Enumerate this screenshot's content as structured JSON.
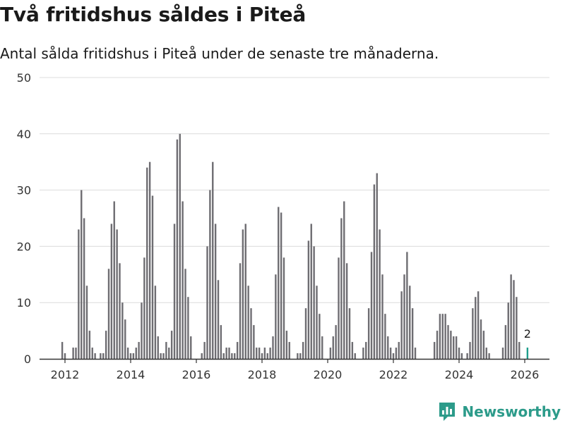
{
  "title": "Två fritidshus såldes i Piteå",
  "subtitle": "Antal sålda fritidshus i Piteå under de senaste tre månaderna.",
  "logo": {
    "text": "Newsworthy",
    "icon": "newsworthy-chart-icon"
  },
  "colors": {
    "bar": "#6e6d72",
    "highlight": "#1f9e8c",
    "grid": "#dcdcdc",
    "axis": "#333333",
    "brand": "#2c9b8a"
  },
  "chart_data": {
    "type": "bar",
    "title": "Två fritidshus såldes i Piteå",
    "xlabel": "",
    "ylabel": "",
    "ylim": [
      0,
      50
    ],
    "yticks": [
      0,
      10,
      20,
      30,
      40,
      50
    ],
    "xticks": [
      {
        "label": "2012",
        "x": 2012
      },
      {
        "label": "2014",
        "x": 2014
      },
      {
        "label": "2016",
        "x": 2016
      },
      {
        "label": "2018",
        "x": 2018
      },
      {
        "label": "2020",
        "x": 2020
      },
      {
        "label": "2022",
        "x": 2022
      },
      {
        "label": "2024",
        "x": 2024
      },
      {
        "label": "2026",
        "x": 2026
      }
    ],
    "start": {
      "year": 2011,
      "month": 9
    },
    "grid": true,
    "highlight_last": true,
    "last_value_label": "2",
    "series": [
      {
        "name": "Sålda fritidshus",
        "values": [
          0,
          0,
          0,
          3,
          1,
          0,
          0,
          2,
          2,
          23,
          30,
          25,
          13,
          5,
          2,
          1,
          0,
          1,
          1,
          5,
          16,
          24,
          28,
          23,
          17,
          10,
          7,
          2,
          1,
          1,
          2,
          3,
          10,
          18,
          34,
          35,
          29,
          13,
          4,
          1,
          1,
          3,
          2,
          5,
          24,
          39,
          40,
          28,
          16,
          11,
          4,
          0,
          0,
          0,
          1,
          3,
          20,
          30,
          35,
          24,
          14,
          6,
          1,
          2,
          2,
          1,
          1,
          3,
          17,
          23,
          24,
          13,
          9,
          6,
          2,
          2,
          1,
          2,
          1,
          2,
          4,
          15,
          27,
          26,
          18,
          5,
          3,
          0,
          0,
          1,
          1,
          3,
          9,
          21,
          24,
          20,
          13,
          8,
          4,
          0,
          0,
          2,
          4,
          6,
          18,
          25,
          28,
          17,
          9,
          3,
          1,
          0,
          0,
          2,
          3,
          9,
          19,
          31,
          33,
          23,
          15,
          8,
          4,
          2,
          1,
          2,
          3,
          12,
          15,
          19,
          13,
          9,
          2,
          0,
          0,
          0,
          0,
          0,
          0,
          3,
          5,
          8,
          8,
          8,
          6,
          5,
          4,
          4,
          2,
          1,
          0,
          1,
          3,
          9,
          11,
          12,
          7,
          5,
          2,
          1,
          0,
          0,
          0,
          0,
          2,
          6,
          10,
          15,
          14,
          11,
          3,
          0,
          0,
          2
        ]
      }
    ]
  }
}
